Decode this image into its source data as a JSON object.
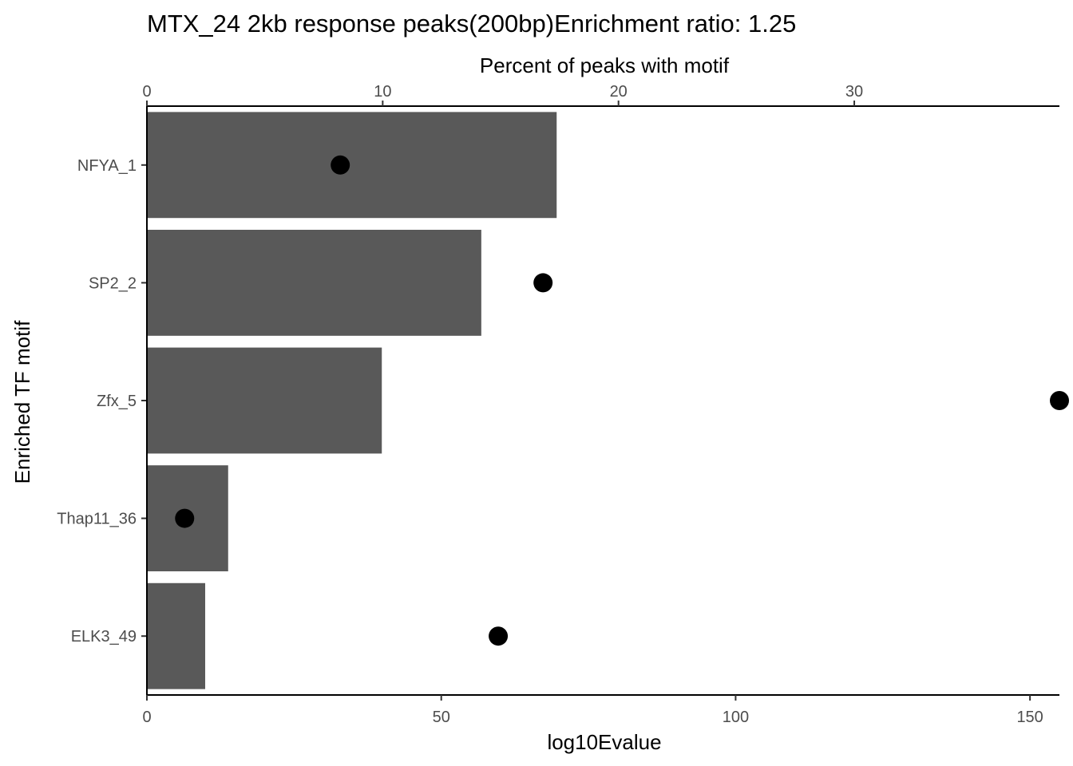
{
  "chart_data": {
    "type": "bar",
    "title": "MTX_24 2kb response peaks(200bp)Enrichment ratio: 1.25",
    "xlabel": "log10Evalue",
    "x2label": "Percent of peaks with motif",
    "ylabel": "Enriched TF motif",
    "categories": [
      "NFYA_1",
      "SP2_2",
      "Zfx_5",
      "Thap11_36",
      "ELK3_49"
    ],
    "series": [
      {
        "values": [
          69.6,
          56.8,
          39.9,
          13.8,
          9.9
        ],
        "axis": "bottom",
        "mark": "bar",
        "color": "#595959"
      },
      {
        "values": [
          8.2,
          16.8,
          38.7,
          1.6,
          14.9
        ],
        "axis": "top",
        "mark": "point",
        "color": "#000000"
      }
    ],
    "xlim": [
      0,
      155
    ],
    "x2lim": [
      0,
      38.7
    ],
    "xticks": [
      0,
      50,
      100,
      150
    ],
    "x2ticks": [
      0,
      10,
      20,
      30
    ],
    "grid": false,
    "legend": "none"
  }
}
